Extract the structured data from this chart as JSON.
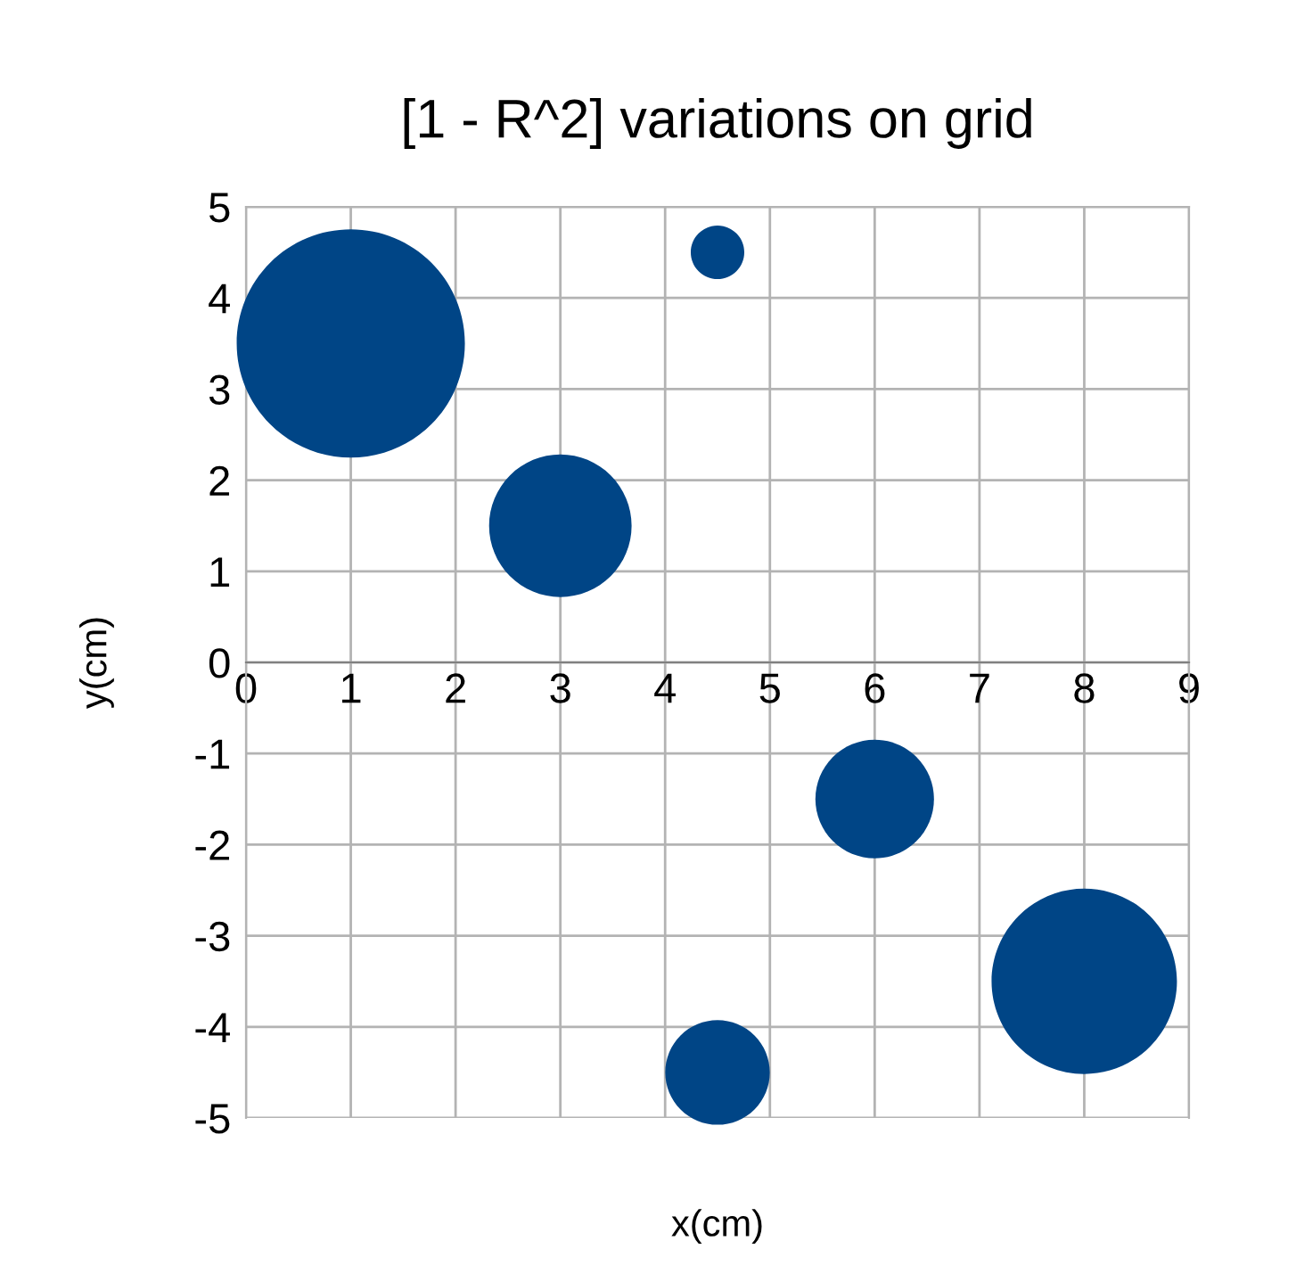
{
  "chart_data": {
    "type": "bubble",
    "title": "[1 - R^2] variations on grid",
    "xlabel": "x(cm)",
    "ylabel": "y(cm)",
    "x": [
      1,
      4.5,
      3,
      6,
      8,
      4.5
    ],
    "values": [
      3.5,
      4.5,
      1.5,
      -1.5,
      -3.5,
      -4.5
    ],
    "sizes": [
      1,
      0.055,
      0.39,
      0.27,
      0.66,
      0.21
    ],
    "color": "#004586",
    "xlim": [
      0,
      9
    ],
    "xticks": [
      0,
      1,
      2,
      3,
      4,
      5,
      6,
      7,
      8,
      9
    ],
    "ylim": [
      -5,
      5
    ],
    "yticks": [
      -5,
      -4,
      -3,
      -2,
      -1,
      0,
      1,
      2,
      3,
      4,
      5
    ],
    "grid": true
  }
}
